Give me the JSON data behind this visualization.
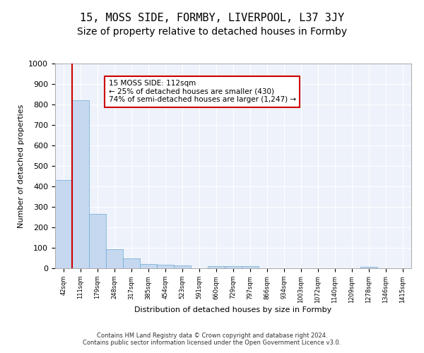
{
  "title": "15, MOSS SIDE, FORMBY, LIVERPOOL, L37 3JY",
  "subtitle": "Size of property relative to detached houses in Formby",
  "xlabel": "Distribution of detached houses by size in Formby",
  "ylabel": "Number of detached properties",
  "footer_line1": "Contains HM Land Registry data © Crown copyright and database right 2024.",
  "footer_line2": "Contains public sector information licensed under the Open Government Licence v3.0.",
  "annotation_line1": "15 MOSS SIDE: 112sqm",
  "annotation_line2": "← 25% of detached houses are smaller (430)",
  "annotation_line3": "74% of semi-detached houses are larger (1,247) →",
  "bar_values": [
    430,
    820,
    265,
    92,
    47,
    22,
    16,
    13,
    0,
    12,
    12,
    12,
    0,
    0,
    0,
    0,
    0,
    0,
    8,
    0,
    0
  ],
  "bar_labels": [
    "42sqm",
    "111sqm",
    "179sqm",
    "248sqm",
    "317sqm",
    "385sqm",
    "454sqm",
    "523sqm",
    "591sqm",
    "660sqm",
    "729sqm",
    "797sqm",
    "866sqm",
    "934sqm",
    "1003sqm",
    "1072sqm",
    "1140sqm",
    "1209sqm",
    "1278sqm",
    "1346sqm",
    "1415sqm"
  ],
  "bar_color": "#c5d8f0",
  "bar_edge_color": "#6aaad4",
  "highlight_line_color": "#cc0000",
  "ylim": [
    0,
    1000
  ],
  "yticks": [
    0,
    100,
    200,
    300,
    400,
    500,
    600,
    700,
    800,
    900,
    1000
  ],
  "annotation_box_edge": "#cc0000",
  "plot_bg_color": "#eef2fa",
  "grid_color": "#ffffff",
  "title_fontsize": 11,
  "subtitle_fontsize": 10
}
